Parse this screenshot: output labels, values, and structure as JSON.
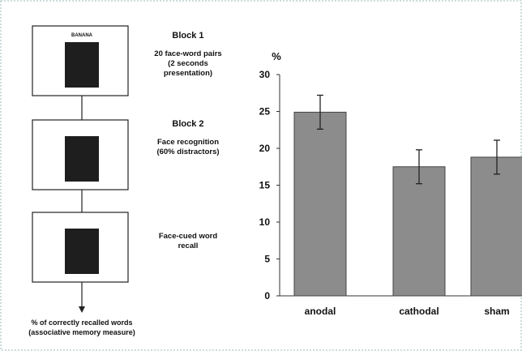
{
  "diagram": {
    "boxes": [
      {
        "word": "BANANA"
      },
      {},
      {}
    ],
    "steps": [
      {
        "title": "Block 1",
        "text": [
          "20 face-word pairs",
          "(2 seconds",
          "presentation)"
        ]
      },
      {
        "title": "Block 2",
        "text": [
          "Face recognition",
          "(60% distractors)"
        ]
      },
      {
        "text": [
          "Face-cued word",
          "recall"
        ]
      }
    ],
    "outcome": [
      "% of correctly recalled words",
      "(associative memory measure)"
    ]
  },
  "chart_data": {
    "type": "bar",
    "y_label": "%",
    "categories": [
      "anodal",
      "cathodal",
      "sham"
    ],
    "values": [
      24.9,
      17.5,
      18.8
    ],
    "errors": [
      2.3,
      2.3,
      2.3
    ],
    "color": "#8c8c8c",
    "ylim": [
      0,
      30
    ],
    "yticks": [
      0,
      5,
      10,
      15,
      20,
      25,
      30
    ]
  }
}
